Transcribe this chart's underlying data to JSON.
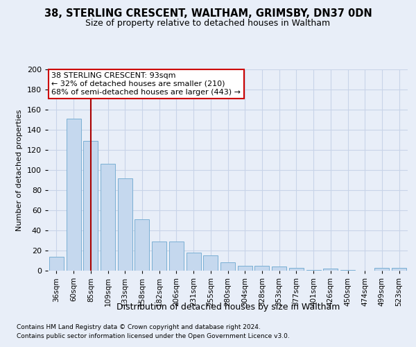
{
  "title1": "38, STERLING CRESCENT, WALTHAM, GRIMSBY, DN37 0DN",
  "title2": "Size of property relative to detached houses in Waltham",
  "xlabel": "Distribution of detached houses by size in Waltham",
  "ylabel": "Number of detached properties",
  "categories": [
    "36sqm",
    "60sqm",
    "85sqm",
    "109sqm",
    "133sqm",
    "158sqm",
    "182sqm",
    "206sqm",
    "231sqm",
    "255sqm",
    "280sqm",
    "304sqm",
    "328sqm",
    "353sqm",
    "377sqm",
    "401sqm",
    "426sqm",
    "450sqm",
    "474sqm",
    "499sqm",
    "523sqm"
  ],
  "values": [
    14,
    151,
    129,
    106,
    92,
    51,
    29,
    29,
    18,
    15,
    8,
    5,
    5,
    4,
    3,
    1,
    2,
    1,
    0,
    3,
    3
  ],
  "bar_color": "#c5d8ee",
  "bar_edge_color": "#7aafd4",
  "vline_index": 2,
  "vline_color": "#aa0000",
  "annotation_line1": "38 STERLING CRESCENT: 93sqm",
  "annotation_line2": "← 32% of detached houses are smaller (210)",
  "annotation_line3": "68% of semi-detached houses are larger (443) →",
  "annotation_box_facecolor": "white",
  "annotation_box_edgecolor": "#cc0000",
  "ylim": [
    0,
    200
  ],
  "yticks": [
    0,
    20,
    40,
    60,
    80,
    100,
    120,
    140,
    160,
    180,
    200
  ],
  "footer1": "Contains HM Land Registry data © Crown copyright and database right 2024.",
  "footer2": "Contains public sector information licensed under the Open Government Licence v3.0.",
  "background_color": "#e8eef8",
  "grid_color": "#c8d4e8",
  "title1_fontsize": 10.5,
  "title2_fontsize": 9,
  "ylabel_fontsize": 8,
  "xlabel_fontsize": 9,
  "tick_fontsize": 8,
  "xtick_fontsize": 7.5,
  "footer_fontsize": 6.5,
  "ann_fontsize": 8
}
